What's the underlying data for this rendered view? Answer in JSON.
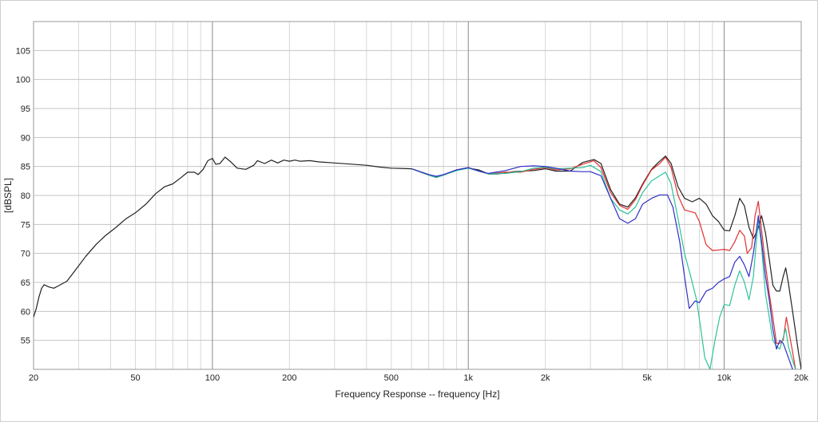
{
  "chart_data": {
    "type": "line",
    "xlabel": "Frequency Response -- frequency [Hz]",
    "ylabel": "[dBSPL]",
    "x_scale": "log",
    "xlim": [
      20,
      20000
    ],
    "ylim": [
      50,
      110
    ],
    "grid": true,
    "legend": "none",
    "x_ticks": [
      {
        "v": 20,
        "label": "20"
      },
      {
        "v": 50,
        "label": "50"
      },
      {
        "v": 100,
        "label": "100"
      },
      {
        "v": 200,
        "label": "200"
      },
      {
        "v": 500,
        "label": "500"
      },
      {
        "v": 1000,
        "label": "1k"
      },
      {
        "v": 2000,
        "label": "2k"
      },
      {
        "v": 5000,
        "label": "5k"
      },
      {
        "v": 10000,
        "label": "10k"
      },
      {
        "v": 20000,
        "label": "20k"
      }
    ],
    "y_ticks": [
      {
        "v": 55,
        "label": "55"
      },
      {
        "v": 60,
        "label": "60"
      },
      {
        "v": 65,
        "label": "65"
      },
      {
        "v": 70,
        "label": "70"
      },
      {
        "v": 75,
        "label": "75"
      },
      {
        "v": 80,
        "label": "80"
      },
      {
        "v": 85,
        "label": "85"
      },
      {
        "v": 90,
        "label": "90"
      },
      {
        "v": 95,
        "label": "95"
      },
      {
        "v": 100,
        "label": "100"
      },
      {
        "v": 105,
        "label": "105"
      }
    ],
    "series": [
      {
        "color": "#222222",
        "points": [
          [
            20,
            59
          ],
          [
            20.5,
            60.5
          ],
          [
            21,
            62.5
          ],
          [
            21.5,
            64
          ],
          [
            22,
            64.6
          ],
          [
            23,
            64.2
          ],
          [
            24,
            64
          ],
          [
            25,
            64.4
          ],
          [
            27,
            65.2
          ],
          [
            29,
            67
          ],
          [
            32,
            69.5
          ],
          [
            35,
            71.5
          ],
          [
            38,
            73
          ],
          [
            42,
            74.5
          ],
          [
            46,
            76
          ],
          [
            50,
            77
          ],
          [
            55,
            78.5
          ],
          [
            60,
            80.3
          ],
          [
            65,
            81.5
          ],
          [
            70,
            82
          ],
          [
            75,
            83
          ],
          [
            80,
            84
          ],
          [
            85,
            84
          ],
          [
            88,
            83.6
          ],
          [
            92,
            84.5
          ],
          [
            96,
            86
          ],
          [
            100,
            86.4
          ],
          [
            103,
            85.4
          ],
          [
            107,
            85.5
          ],
          [
            112,
            86.6
          ],
          [
            118,
            85.8
          ],
          [
            125,
            84.7
          ],
          [
            135,
            84.5
          ],
          [
            145,
            85.2
          ],
          [
            150,
            86
          ],
          [
            160,
            85.5
          ],
          [
            170,
            86.1
          ],
          [
            180,
            85.6
          ],
          [
            190,
            86.1
          ],
          [
            200,
            85.9
          ],
          [
            210,
            86.1
          ],
          [
            220,
            85.9
          ],
          [
            240,
            86
          ],
          [
            260,
            85.8
          ],
          [
            300,
            85.6
          ],
          [
            350,
            85.4
          ],
          [
            400,
            85.2
          ],
          [
            450,
            84.9
          ],
          [
            500,
            84.7
          ],
          [
            600,
            84.6
          ],
          [
            700,
            83.6
          ],
          [
            750,
            83.2
          ],
          [
            800,
            83.5
          ],
          [
            900,
            84.4
          ],
          [
            1000,
            84.7
          ],
          [
            1100,
            84.4
          ],
          [
            1200,
            83.7
          ],
          [
            1300,
            83.7
          ],
          [
            1500,
            84.1
          ],
          [
            1800,
            84.3
          ],
          [
            2000,
            84.6
          ],
          [
            2200,
            84.2
          ],
          [
            2500,
            84.2
          ],
          [
            2800,
            85.7
          ],
          [
            3100,
            86.2
          ],
          [
            3300,
            85.5
          ],
          [
            3600,
            81
          ],
          [
            3900,
            78.5
          ],
          [
            4200,
            78
          ],
          [
            4500,
            79.6
          ],
          [
            4800,
            82
          ],
          [
            5200,
            84.5
          ],
          [
            5500,
            85.6
          ],
          [
            5900,
            86.8
          ],
          [
            6200,
            85.5
          ],
          [
            6600,
            81.5
          ],
          [
            7000,
            79.5
          ],
          [
            7500,
            78.9
          ],
          [
            8000,
            79.5
          ],
          [
            8500,
            78.5
          ],
          [
            9000,
            76.5
          ],
          [
            9500,
            75.5
          ],
          [
            10000,
            74
          ],
          [
            10500,
            73.9
          ],
          [
            11000,
            76.5
          ],
          [
            11500,
            79.5
          ],
          [
            12000,
            78.2
          ],
          [
            12500,
            74.5
          ],
          [
            13000,
            72.6
          ],
          [
            13500,
            74
          ],
          [
            14000,
            76.5
          ],
          [
            14500,
            73.5
          ],
          [
            15000,
            69
          ],
          [
            15500,
            64.5
          ],
          [
            16000,
            63.5
          ],
          [
            16500,
            63.5
          ],
          [
            17000,
            66
          ],
          [
            17400,
            67.5
          ],
          [
            17800,
            65
          ],
          [
            18500,
            60
          ],
          [
            19500,
            53
          ],
          [
            20000,
            50
          ]
        ]
      },
      {
        "color": "#e03030",
        "points": [
          [
            600,
            84.6
          ],
          [
            700,
            83.5
          ],
          [
            750,
            83.1
          ],
          [
            800,
            83.5
          ],
          [
            900,
            84.4
          ],
          [
            1000,
            84.8
          ],
          [
            1100,
            84.2
          ],
          [
            1200,
            83.7
          ],
          [
            1400,
            84
          ],
          [
            1600,
            84
          ],
          [
            1800,
            84.5
          ],
          [
            2000,
            84.8
          ],
          [
            2200,
            84.4
          ],
          [
            2500,
            84.6
          ],
          [
            2800,
            85.4
          ],
          [
            3100,
            86
          ],
          [
            3300,
            84.8
          ],
          [
            3600,
            80.5
          ],
          [
            3900,
            78.3
          ],
          [
            4200,
            77.6
          ],
          [
            4500,
            79.3
          ],
          [
            4800,
            81.8
          ],
          [
            5200,
            84.4
          ],
          [
            5600,
            85.5
          ],
          [
            5900,
            86.6
          ],
          [
            6200,
            84.8
          ],
          [
            6600,
            80
          ],
          [
            7000,
            77.5
          ],
          [
            7400,
            77.2
          ],
          [
            7700,
            77
          ],
          [
            8000,
            75.5
          ],
          [
            8500,
            71.5
          ],
          [
            9000,
            70.5
          ],
          [
            9500,
            70.6
          ],
          [
            10000,
            70.7
          ],
          [
            10500,
            70.5
          ],
          [
            11000,
            72
          ],
          [
            11500,
            74
          ],
          [
            12000,
            73
          ],
          [
            12300,
            70
          ],
          [
            12800,
            71
          ],
          [
            13200,
            76.5
          ],
          [
            13600,
            79
          ],
          [
            14000,
            74
          ],
          [
            14500,
            68
          ],
          [
            15000,
            63
          ],
          [
            15500,
            59
          ],
          [
            16000,
            54.5
          ],
          [
            16500,
            54.5
          ],
          [
            17000,
            55
          ],
          [
            17500,
            59
          ],
          [
            18000,
            56
          ],
          [
            18500,
            53
          ],
          [
            19000,
            50
          ]
        ]
      },
      {
        "color": "#2ec39a",
        "points": [
          [
            600,
            84.6
          ],
          [
            700,
            83.5
          ],
          [
            750,
            83.1
          ],
          [
            800,
            83.5
          ],
          [
            900,
            84.3
          ],
          [
            1000,
            84.7
          ],
          [
            1100,
            84.2
          ],
          [
            1200,
            83.7
          ],
          [
            1400,
            83.8
          ],
          [
            1600,
            84.1
          ],
          [
            1800,
            84.7
          ],
          [
            2000,
            84.9
          ],
          [
            2200,
            84.6
          ],
          [
            2500,
            84.7
          ],
          [
            2800,
            84.8
          ],
          [
            3000,
            85.2
          ],
          [
            3300,
            84.1
          ],
          [
            3600,
            79.5
          ],
          [
            3900,
            77.5
          ],
          [
            4200,
            76.8
          ],
          [
            4500,
            78
          ],
          [
            4800,
            80.5
          ],
          [
            5200,
            82.5
          ],
          [
            5600,
            83.4
          ],
          [
            5900,
            84
          ],
          [
            6200,
            82
          ],
          [
            6600,
            76
          ],
          [
            7000,
            70
          ],
          [
            7400,
            66
          ],
          [
            7800,
            62
          ],
          [
            8100,
            57
          ],
          [
            8400,
            52
          ],
          [
            8800,
            50
          ],
          [
            9200,
            55
          ],
          [
            9600,
            59
          ],
          [
            10000,
            61.2
          ],
          [
            10500,
            61
          ],
          [
            11000,
            64.5
          ],
          [
            11500,
            67
          ],
          [
            12000,
            65
          ],
          [
            12500,
            62
          ],
          [
            13000,
            66
          ],
          [
            13600,
            76
          ],
          [
            14000,
            71
          ],
          [
            14500,
            63
          ],
          [
            15000,
            59
          ],
          [
            15500,
            55
          ],
          [
            16000,
            54
          ],
          [
            16500,
            53.5
          ],
          [
            17000,
            55.5
          ],
          [
            17400,
            57
          ],
          [
            17800,
            54
          ],
          [
            18500,
            51.5
          ],
          [
            19000,
            50
          ]
        ]
      },
      {
        "color": "#2f2fc8",
        "points": [
          [
            600,
            84.6
          ],
          [
            700,
            83.6
          ],
          [
            750,
            83.3
          ],
          [
            800,
            83.6
          ],
          [
            900,
            84.4
          ],
          [
            1000,
            84.8
          ],
          [
            1100,
            84.2
          ],
          [
            1200,
            83.8
          ],
          [
            1400,
            84.3
          ],
          [
            1600,
            85
          ],
          [
            1800,
            85.1
          ],
          [
            2000,
            85
          ],
          [
            2200,
            84.7
          ],
          [
            2500,
            84.2
          ],
          [
            2800,
            84.1
          ],
          [
            3000,
            84.1
          ],
          [
            3300,
            83.4
          ],
          [
            3600,
            79.5
          ],
          [
            3900,
            76
          ],
          [
            4200,
            75.2
          ],
          [
            4500,
            76
          ],
          [
            4800,
            78.5
          ],
          [
            5200,
            79.5
          ],
          [
            5600,
            80.1
          ],
          [
            6000,
            80.1
          ],
          [
            6300,
            78
          ],
          [
            6700,
            72
          ],
          [
            7000,
            66
          ],
          [
            7300,
            60.5
          ],
          [
            7700,
            61.8
          ],
          [
            8000,
            61.5
          ],
          [
            8500,
            63.5
          ],
          [
            9000,
            64
          ],
          [
            9500,
            65
          ],
          [
            10000,
            65.6
          ],
          [
            10500,
            66
          ],
          [
            11000,
            68.5
          ],
          [
            11500,
            69.5
          ],
          [
            12000,
            68
          ],
          [
            12500,
            66
          ],
          [
            13000,
            70
          ],
          [
            13600,
            76.5
          ],
          [
            14000,
            72
          ],
          [
            14500,
            66
          ],
          [
            15000,
            62
          ],
          [
            15500,
            57
          ],
          [
            16000,
            53.5
          ],
          [
            16500,
            55
          ],
          [
            17000,
            54.5
          ],
          [
            17500,
            53
          ],
          [
            18000,
            51.5
          ],
          [
            18500,
            50
          ]
        ]
      }
    ]
  }
}
